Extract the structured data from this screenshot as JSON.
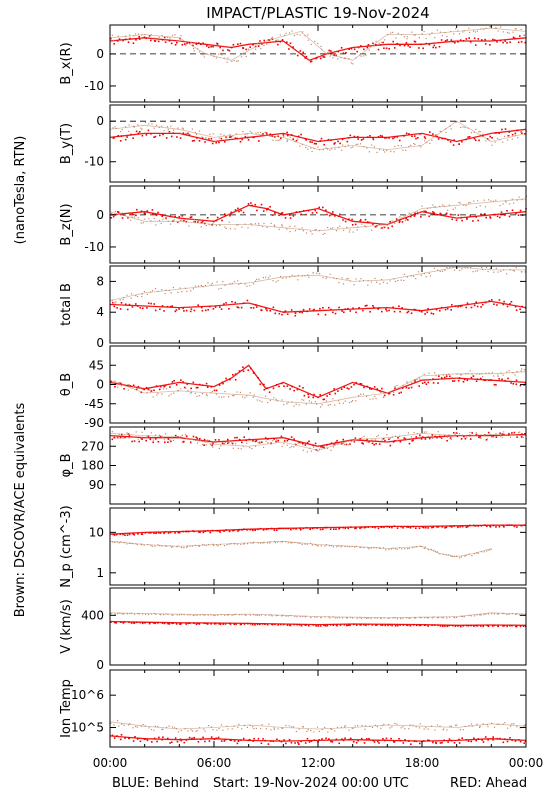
{
  "title": "IMPACT/PLASTIC   19-Nov-2024",
  "side_labels": {
    "units": "(nanoTesla, RTN)",
    "brown_note": "Brown: DSCOVR/ACE equivalents"
  },
  "footer": {
    "blue": "BLUE: Behind",
    "start": "Start: 19-Nov-2024 00:00 UTC",
    "red": "RED: Ahead"
  },
  "colors": {
    "ahead": "#ee0000",
    "ace": "#c08a6a",
    "blue": "#1a1ad6",
    "brown_label": "#c08a6a"
  },
  "time_axis": {
    "hours_range": [
      0,
      24
    ],
    "tick_labels": [
      "00:00",
      "06:00",
      "12:00",
      "18:00",
      "00:00"
    ]
  },
  "chart_data": [
    {
      "type": "scatter",
      "ylabel": "B_x(R)",
      "ylim": [
        -15,
        9
      ],
      "yticks": [
        -10,
        0
      ],
      "zero_line": true,
      "series": [
        {
          "name": "Ahead",
          "x": [
            0,
            2,
            4,
            5.5,
            7,
            8,
            10,
            11.5,
            12.5,
            14,
            16,
            18,
            20,
            22,
            24
          ],
          "values": [
            4,
            5,
            4,
            3,
            2,
            3,
            4,
            -2,
            0,
            2,
            3,
            3,
            4,
            4,
            5
          ]
        },
        {
          "name": "DSCOVR/ACE",
          "x": [
            0,
            2,
            4,
            5.5,
            7,
            9,
            11,
            12.5,
            14,
            16,
            18,
            20,
            22,
            24
          ],
          "values": [
            5,
            6,
            5,
            0,
            -2,
            4,
            7,
            0,
            -2,
            6,
            6,
            7,
            8,
            7
          ]
        }
      ]
    },
    {
      "type": "scatter",
      "ylabel": "B_y(T)",
      "ylim": [
        -15,
        4
      ],
      "yticks": [
        -10,
        0
      ],
      "zero_line": true,
      "series": [
        {
          "name": "Ahead",
          "x": [
            0,
            2,
            4,
            6,
            8,
            10,
            12,
            14,
            16,
            18,
            20,
            22,
            24
          ],
          "values": [
            -4,
            -3,
            -3,
            -5,
            -4,
            -3,
            -5,
            -4,
            -4,
            -3,
            -5,
            -3,
            -2
          ]
        },
        {
          "name": "DSCOVR/ACE",
          "x": [
            0,
            2,
            4,
            6,
            8,
            10,
            12,
            14,
            16,
            18,
            20,
            22,
            24
          ],
          "values": [
            -2,
            -1,
            -2,
            -4,
            -3,
            -4,
            -7,
            -6,
            -7,
            -6,
            0,
            -5,
            -3
          ]
        }
      ]
    },
    {
      "type": "scatter",
      "ylabel": "B_z(N)",
      "ylim": [
        -15,
        9
      ],
      "yticks": [
        -10,
        0
      ],
      "zero_line": true,
      "series": [
        {
          "name": "Ahead",
          "x": [
            0,
            2,
            4,
            6,
            8,
            9,
            10,
            12,
            14,
            16,
            18,
            20,
            22,
            24
          ],
          "values": [
            0,
            1,
            -1,
            -2,
            3,
            2,
            0,
            2,
            -2,
            -3,
            1,
            -1,
            0,
            1
          ]
        },
        {
          "name": "DSCOVR/ACE",
          "x": [
            0,
            2,
            4,
            6,
            8,
            10,
            12,
            14,
            16,
            18,
            20,
            22,
            24
          ],
          "values": [
            1,
            -2,
            -2,
            -3,
            -3,
            -4,
            -5,
            -4,
            -3,
            2,
            3,
            4,
            5
          ]
        }
      ]
    },
    {
      "type": "scatter",
      "ylabel": "total B",
      "ylim": [
        0,
        10
      ],
      "yticks": [
        0,
        4,
        8
      ],
      "zero_line": false,
      "series": [
        {
          "name": "Ahead",
          "x": [
            0,
            2,
            4,
            6,
            8,
            10,
            12,
            14,
            16,
            18,
            20,
            22,
            24
          ],
          "values": [
            5,
            4.8,
            4.6,
            4.8,
            5.2,
            4,
            4.2,
            4.4,
            4.6,
            4.2,
            4.8,
            5.4,
            4.6
          ]
        },
        {
          "name": "DSCOVR/ACE",
          "x": [
            0,
            2,
            4,
            6,
            8,
            10,
            12,
            14,
            16,
            18,
            20,
            22,
            24
          ],
          "values": [
            5.5,
            6.5,
            7,
            7.5,
            7.8,
            8.6,
            8.8,
            8,
            8.2,
            9,
            10,
            9.5,
            9.5
          ]
        }
      ]
    },
    {
      "type": "scatter",
      "ylabel": "θ_B",
      "ylim": [
        -90,
        90
      ],
      "yticks": [
        -90,
        -45,
        0,
        45
      ],
      "zero_line": false,
      "series": [
        {
          "name": "Ahead",
          "x": [
            0,
            2,
            4,
            6,
            7,
            8,
            9,
            10,
            12,
            14,
            16,
            18,
            20,
            22,
            24
          ],
          "values": [
            5,
            -10,
            5,
            -5,
            15,
            45,
            -10,
            5,
            -30,
            5,
            -20,
            10,
            15,
            10,
            5
          ]
        },
        {
          "name": "DSCOVR/ACE",
          "x": [
            0,
            2,
            4,
            6,
            8,
            10,
            12,
            14,
            16,
            18,
            20,
            22,
            24
          ],
          "values": [
            10,
            -20,
            -15,
            -20,
            -25,
            -40,
            -45,
            -30,
            -20,
            20,
            25,
            25,
            30
          ]
        }
      ]
    },
    {
      "type": "scatter",
      "ylabel": "φ_B",
      "ylim": [
        0,
        360
      ],
      "yticks": [
        90,
        180,
        270
      ],
      "zero_line": false,
      "series": [
        {
          "name": "Ahead",
          "x": [
            0,
            2,
            4,
            6,
            8,
            10,
            12,
            14,
            16,
            18,
            20,
            22,
            24
          ],
          "values": [
            320,
            310,
            310,
            290,
            300,
            310,
            270,
            300,
            290,
            310,
            320,
            320,
            325
          ]
        },
        {
          "name": "DSCOVR/ACE",
          "x": [
            0,
            2,
            4,
            6,
            8,
            10,
            12,
            14,
            16,
            18,
            20,
            22,
            24
          ],
          "values": [
            330,
            320,
            315,
            280,
            270,
            290,
            250,
            300,
            310,
            330,
            320,
            325,
            320
          ]
        }
      ]
    },
    {
      "type": "line",
      "ylabel": "N_p (cm^-3)",
      "ylog": true,
      "ylim": [
        0.5,
        40
      ],
      "yticks": [
        1,
        10
      ],
      "zero_line": false,
      "series": [
        {
          "name": "Ahead",
          "x": [
            0,
            2,
            4,
            6,
            8,
            10,
            12,
            14,
            16,
            18,
            20,
            22,
            24
          ],
          "values": [
            9,
            10,
            10.5,
            11,
            12,
            12.5,
            13,
            13.5,
            14,
            14,
            14.5,
            15,
            15
          ]
        },
        {
          "name": "DSCOVR/ACE",
          "x": [
            0,
            2,
            4,
            6,
            8,
            10,
            12,
            14,
            16,
            18,
            19,
            20,
            21,
            22
          ],
          "values": [
            6,
            5,
            4.5,
            5,
            5.5,
            6,
            5,
            4.5,
            4,
            4.5,
            3,
            2.5,
            3,
            4
          ]
        }
      ]
    },
    {
      "type": "line",
      "ylabel": "V (km/s)",
      "ylim": [
        0,
        620
      ],
      "yticks": [
        0,
        400
      ],
      "zero_line": false,
      "series": [
        {
          "name": "Ahead",
          "x": [
            0,
            2,
            4,
            6,
            8,
            10,
            12,
            14,
            16,
            18,
            20,
            22,
            24
          ],
          "values": [
            350,
            345,
            340,
            338,
            335,
            330,
            325,
            330,
            328,
            325,
            320,
            322,
            320
          ]
        },
        {
          "name": "DSCOVR/ACE",
          "x": [
            0,
            2,
            4,
            6,
            8,
            10,
            12,
            14,
            16,
            18,
            20,
            22,
            24
          ],
          "values": [
            420,
            415,
            410,
            405,
            410,
            400,
            390,
            385,
            380,
            385,
            390,
            420,
            410
          ]
        }
      ]
    },
    {
      "type": "scatter",
      "ylabel": "Ion Temp",
      "ylog": true,
      "ylim": [
        25000,
        6000000
      ],
      "yticks": [
        100000,
        1000000
      ],
      "ytick_labels": [
        "10^5",
        "10^6"
      ],
      "zero_line": false,
      "series": [
        {
          "name": "Ahead",
          "x": [
            0,
            2,
            4,
            6,
            8,
            10,
            12,
            14,
            16,
            18,
            20,
            22,
            24
          ],
          "values": [
            55000,
            45000,
            42000,
            45000,
            40000,
            38000,
            40000,
            42000,
            40000,
            38000,
            40000,
            45000,
            40000
          ]
        },
        {
          "name": "DSCOVR/ACE",
          "x": [
            0,
            2,
            4,
            6,
            8,
            10,
            12,
            14,
            16,
            18,
            20,
            22,
            24
          ],
          "values": [
            150000,
            110000,
            90000,
            100000,
            120000,
            100000,
            90000,
            100000,
            120000,
            110000,
            100000,
            130000,
            110000
          ]
        }
      ]
    }
  ]
}
